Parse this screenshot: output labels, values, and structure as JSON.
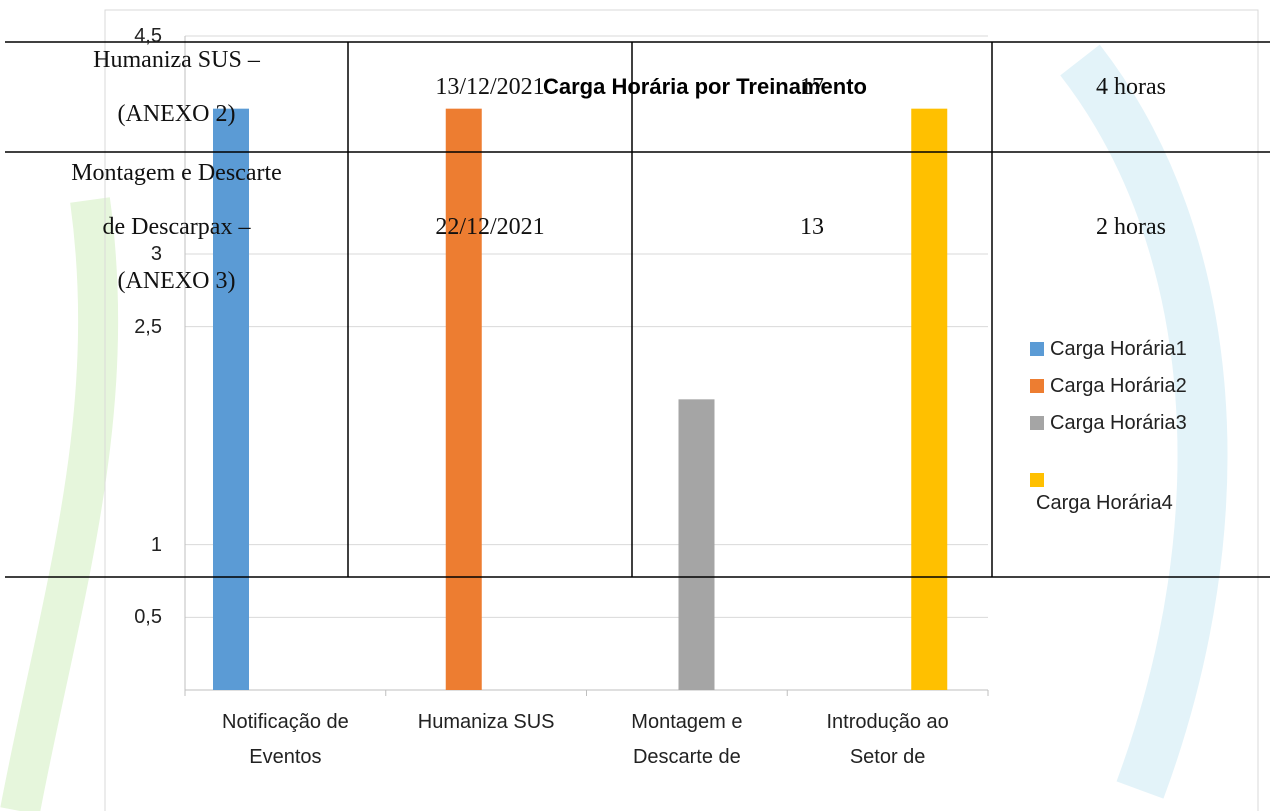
{
  "chart_data": {
    "type": "bar",
    "title": "Carga Horária por Treinamento",
    "categories": [
      "Notificação de\nEventos",
      "Humaniza SUS",
      "Montagem e\nDescarte de",
      "Introdução ao\nSetor de"
    ],
    "series": [
      {
        "name": "Carga Horária1",
        "color": "#5b9bd5",
        "values": [
          4,
          null,
          null,
          null
        ]
      },
      {
        "name": "Carga Horária2",
        "color": "#ed7d31",
        "values": [
          null,
          4,
          null,
          null
        ]
      },
      {
        "name": "Carga Horária3",
        "color": "#a5a5a5",
        "values": [
          null,
          null,
          2,
          null
        ]
      },
      {
        "name": "Carga Horária4",
        "color": "#ffc000",
        "values": [
          null,
          null,
          null,
          4
        ]
      }
    ],
    "ylim": [
      0,
      4.5
    ],
    "yticks": [
      {
        "value": 0.5,
        "label": "0,5"
      },
      1,
      {
        "value": 2.5,
        "label": "2,5"
      },
      3,
      {
        "value": 4.5,
        "label": "4,5"
      }
    ],
    "grid": true,
    "legend": "right"
  },
  "table": {
    "rows": [
      [
        "Humaniza SUS –\n(ANEXO 2)",
        "13/12/2021",
        "17",
        "4 horas"
      ],
      [
        "Montagem e Descarte\nde Descarpax –\n(ANEXO 3)",
        "22/12/2021",
        "13",
        "2 horas"
      ]
    ]
  }
}
